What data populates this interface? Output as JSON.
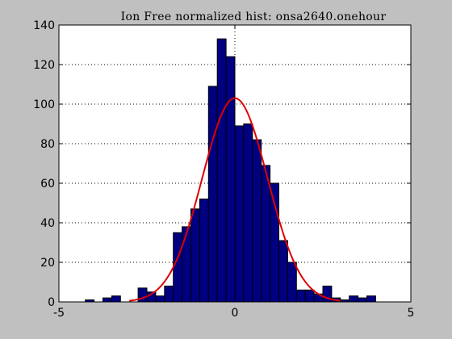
{
  "colors": {
    "figure_background": "#c0c0c0",
    "axes_background": "#ffffff",
    "bar_fill": "#000080",
    "bar_edge": "#000000",
    "curve": "#e00000",
    "grid": "#000000"
  },
  "chart_data": {
    "type": "bar",
    "title": "Ion Free normalized hist: onsa2640.onehour",
    "xlabel": "",
    "ylabel": "",
    "xlim": [
      -5,
      5
    ],
    "ylim": [
      0,
      140
    ],
    "xticks": [
      -5,
      0,
      5
    ],
    "yticks": [
      0,
      20,
      40,
      60,
      80,
      100,
      120,
      140
    ],
    "grid": true,
    "bin_width": 0.25,
    "bins": [
      {
        "x": -4.125,
        "y": 1
      },
      {
        "x": -3.875,
        "y": 0
      },
      {
        "x": -3.625,
        "y": 2
      },
      {
        "x": -3.375,
        "y": 3
      },
      {
        "x": -3.125,
        "y": 0
      },
      {
        "x": -2.875,
        "y": 0
      },
      {
        "x": -2.625,
        "y": 7
      },
      {
        "x": -2.375,
        "y": 5
      },
      {
        "x": -2.125,
        "y": 3
      },
      {
        "x": -1.875,
        "y": 8
      },
      {
        "x": -1.625,
        "y": 35
      },
      {
        "x": -1.375,
        "y": 38
      },
      {
        "x": -1.125,
        "y": 47
      },
      {
        "x": -0.875,
        "y": 52
      },
      {
        "x": -0.625,
        "y": 109
      },
      {
        "x": -0.375,
        "y": 133
      },
      {
        "x": -0.125,
        "y": 124
      },
      {
        "x": 0.125,
        "y": 89
      },
      {
        "x": 0.375,
        "y": 90
      },
      {
        "x": 0.625,
        "y": 82
      },
      {
        "x": 0.875,
        "y": 69
      },
      {
        "x": 1.125,
        "y": 60
      },
      {
        "x": 1.375,
        "y": 31
      },
      {
        "x": 1.625,
        "y": 20
      },
      {
        "x": 1.875,
        "y": 6
      },
      {
        "x": 2.125,
        "y": 6
      },
      {
        "x": 2.375,
        "y": 4
      },
      {
        "x": 2.625,
        "y": 8
      },
      {
        "x": 2.875,
        "y": 2
      },
      {
        "x": 3.125,
        "y": 1
      },
      {
        "x": 3.375,
        "y": 3
      },
      {
        "x": 3.625,
        "y": 2
      },
      {
        "x": 3.875,
        "y": 3
      }
    ],
    "fit_curve": {
      "type": "gaussian",
      "peak": 103,
      "mean": 0,
      "sigma": 0.93,
      "x_range": [
        -3.0,
        3.0
      ]
    }
  }
}
